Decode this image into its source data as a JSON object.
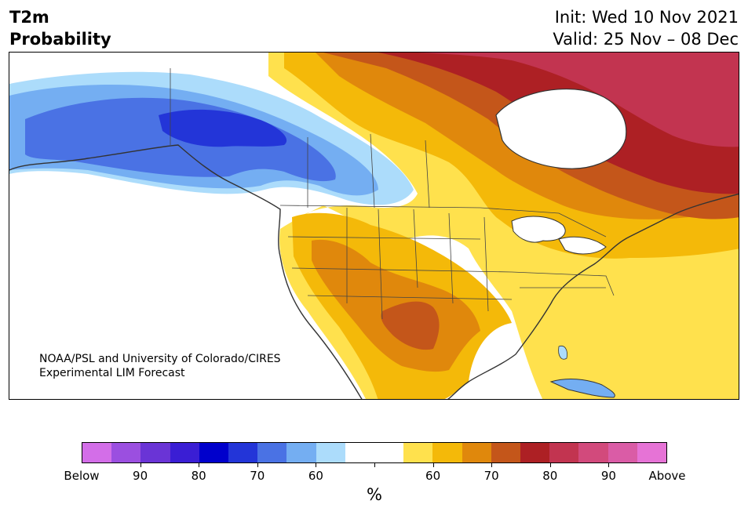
{
  "header": {
    "title_line1": "T2m",
    "title_line2": "Probability",
    "init": "Init: Wed 10 Nov 2021",
    "valid": "Valid: 25 Nov – 08 Dec"
  },
  "map": {
    "credit_line1": "NOAA/PSL and University of Colorado/CIRES",
    "credit_line2": "Experimental LIM Forecast"
  },
  "colorbar": {
    "colors": [
      "#d36ee8",
      "#9b4fe0",
      "#6a34d6",
      "#3a1ed4",
      "#0000cc",
      "#2335d8",
      "#4a72e4",
      "#74aef2",
      "#acdcfb",
      "#ffffff",
      "#ffffff",
      "#ffe14d",
      "#f4b909",
      "#e0880c",
      "#c4561a",
      "#ad2024",
      "#c23450",
      "#d24a7c",
      "#da5ca6",
      "#e673d6"
    ],
    "labels": [
      "Below",
      "90",
      "80",
      "70",
      "60",
      "60",
      "70",
      "80",
      "90",
      "Above"
    ],
    "unit": "%"
  }
}
